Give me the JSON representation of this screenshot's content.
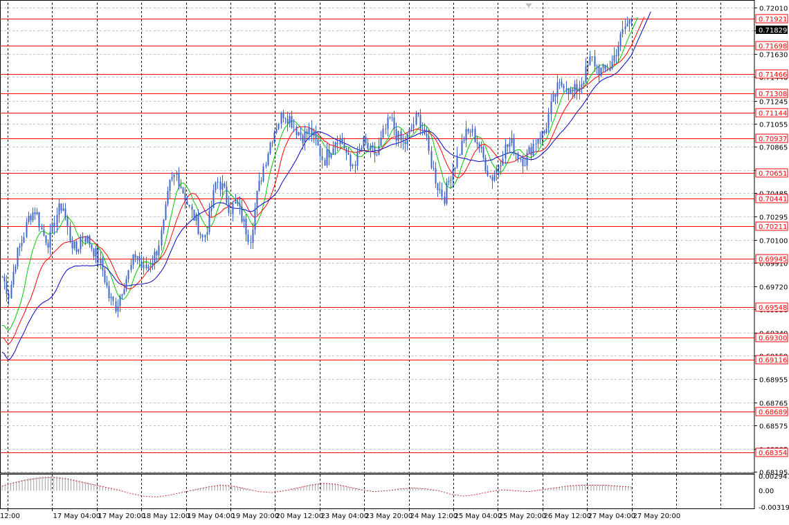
{
  "chart_data": {
    "type": "candlestick",
    "colors": {
      "background": "#ffffff",
      "grid": "#c0c0c0",
      "candle": "#3c64c8",
      "level_line": "#ff0000",
      "level_tag_bg": "#ffffff",
      "current_tag_bg": "#000000",
      "ma_fast": "#00c800",
      "ma_mid": "#ff0000",
      "ma_slow": "#0000c8",
      "oscillator": "#c83232"
    },
    "price_axis": {
      "ylim": [
        0.6819,
        0.7205
      ],
      "ticks": [
        "0.72010",
        "0.71820",
        "0.71630",
        "0.71440",
        "0.71245",
        "0.71055",
        "0.70865",
        "0.70675",
        "0.70485",
        "0.70295",
        "0.70100",
        "0.69910",
        "0.69720",
        "0.69530",
        "0.69340",
        "0.69150",
        "0.68955",
        "0.68765",
        "0.68575",
        "0.68385",
        "0.68195"
      ]
    },
    "current_price": "0.71829",
    "levels": [
      "0.71921",
      "0.71698",
      "0.71466",
      "0.71308",
      "0.71144",
      "0.70937",
      "0.70651",
      "0.70441",
      "0.70211",
      "0.69945",
      "0.69548",
      "0.69300",
      "0.69116",
      "0.68689",
      "0.68354"
    ],
    "time_axis": {
      "labels": [
        "16 May 12:00",
        "17 May 04:00",
        "17 May 20:00",
        "18 May 12:00",
        "19 May 04:00",
        "19 May 20:00",
        "20 May 12:00",
        "23 May 04:00",
        "23 May 20:00",
        "24 May 12:00",
        "25 May 04:00",
        "25 May 20:00",
        "26 May 12:00",
        "27 May 04:00",
        "27 May 20:00"
      ],
      "first_label_shown": "12:00"
    },
    "price_path": [
      0.698,
      0.6965,
      0.6995,
      0.701,
      0.703,
      0.7035,
      0.7015,
      0.7008,
      0.703,
      0.704,
      0.7012,
      0.7,
      0.7015,
      0.7008,
      0.6998,
      0.6985,
      0.6962,
      0.6955,
      0.6972,
      0.6985,
      0.7,
      0.6985,
      0.699,
      0.7,
      0.702,
      0.7055,
      0.7065,
      0.705,
      0.7035,
      0.7025,
      0.701,
      0.703,
      0.706,
      0.7052,
      0.7035,
      0.704,
      0.7025,
      0.701,
      0.7045,
      0.707,
      0.709,
      0.7105,
      0.7115,
      0.711,
      0.71,
      0.7095,
      0.71,
      0.7088,
      0.7075,
      0.7085,
      0.7095,
      0.7088,
      0.707,
      0.7078,
      0.709,
      0.7082,
      0.708,
      0.7098,
      0.711,
      0.7095,
      0.7088,
      0.71,
      0.7112,
      0.71,
      0.7075,
      0.7055,
      0.7045,
      0.7065,
      0.7078,
      0.7095,
      0.71,
      0.709,
      0.7075,
      0.706,
      0.707,
      0.7085,
      0.709,
      0.708,
      0.7075,
      0.7085,
      0.7095,
      0.7098,
      0.712,
      0.7135,
      0.714,
      0.713,
      0.7135,
      0.7145,
      0.716,
      0.715,
      0.7148,
      0.7155,
      0.717,
      0.7185,
      0.7192
    ],
    "oscillator": {
      "ticks": [
        "0.002947",
        "0.00",
        "-0.003193"
      ],
      "ylim": [
        -0.0035,
        0.0032
      ],
      "values": [
        0.001,
        0.0018,
        0.0024,
        0.0028,
        0.0029,
        0.0026,
        0.002,
        0.0014,
        0.0008,
        0.0002,
        -0.0006,
        -0.0012,
        -0.0014,
        -0.001,
        -0.0004,
        0.0002,
        0.0008,
        0.0012,
        0.001,
        0.0004,
        -0.0002,
        -0.0004,
        0.0,
        0.0006,
        0.0012,
        0.0016,
        0.0014,
        0.0008,
        0.0002,
        -0.0002,
        0.0,
        0.0004,
        0.0006,
        0.0004,
        0.0,
        -0.0008,
        -0.0012,
        -0.0008,
        -0.0002,
        0.0002,
        0.0,
        -0.0002,
        0.0002,
        0.0006,
        0.001,
        0.0012,
        0.0012,
        0.0012,
        0.001,
        0.0008
      ]
    }
  }
}
